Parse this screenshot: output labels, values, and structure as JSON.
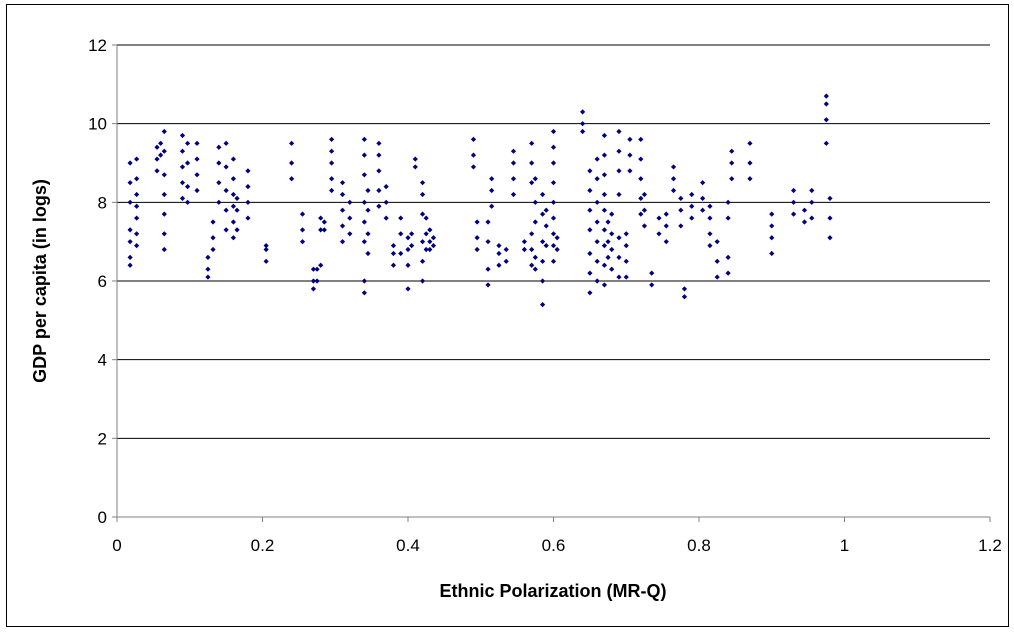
{
  "chart_data": {
    "type": "scatter",
    "title": "",
    "xlabel": "Ethnic Polarization (MR-Q)",
    "ylabel": "GDP per capita (in logs)",
    "xlim": [
      0,
      1.2
    ],
    "ylim": [
      0,
      12
    ],
    "xticks": [
      "0",
      "0.2",
      "0.4",
      "0.6",
      "0.8",
      "1",
      "1.2"
    ],
    "yticks": [
      "0",
      "2",
      "4",
      "6",
      "8",
      "10",
      "12"
    ],
    "grid": "horizontal major gridlines",
    "legend": "none",
    "marker_color": "#000080",
    "marker": "diamond",
    "series": [
      {
        "values_note": "",
        "points": [
          [
            0.018,
            6.4
          ],
          [
            0.018,
            6.6
          ],
          [
            0.018,
            7.0
          ],
          [
            0.018,
            7.3
          ],
          [
            0.018,
            8.0
          ],
          [
            0.018,
            8.5
          ],
          [
            0.018,
            9.0
          ],
          [
            0.027,
            6.9
          ],
          [
            0.027,
            7.2
          ],
          [
            0.027,
            7.6
          ],
          [
            0.027,
            7.9
          ],
          [
            0.027,
            8.2
          ],
          [
            0.027,
            8.6
          ],
          [
            0.027,
            9.1
          ],
          [
            0.055,
            8.8
          ],
          [
            0.055,
            9.1
          ],
          [
            0.055,
            9.4
          ],
          [
            0.06,
            9.5
          ],
          [
            0.06,
            9.2
          ],
          [
            0.065,
            6.8
          ],
          [
            0.065,
            7.2
          ],
          [
            0.065,
            7.7
          ],
          [
            0.065,
            8.2
          ],
          [
            0.065,
            8.7
          ],
          [
            0.065,
            9.3
          ],
          [
            0.065,
            9.8
          ],
          [
            0.09,
            8.1
          ],
          [
            0.09,
            8.5
          ],
          [
            0.09,
            8.9
          ],
          [
            0.09,
            9.3
          ],
          [
            0.09,
            9.7
          ],
          [
            0.097,
            8.0
          ],
          [
            0.097,
            8.4
          ],
          [
            0.097,
            9.0
          ],
          [
            0.097,
            9.5
          ],
          [
            0.11,
            8.3
          ],
          [
            0.11,
            8.7
          ],
          [
            0.11,
            9.1
          ],
          [
            0.11,
            9.5
          ],
          [
            0.125,
            6.1
          ],
          [
            0.125,
            6.3
          ],
          [
            0.125,
            6.6
          ],
          [
            0.132,
            6.8
          ],
          [
            0.132,
            7.1
          ],
          [
            0.132,
            7.5
          ],
          [
            0.14,
            8.0
          ],
          [
            0.14,
            8.5
          ],
          [
            0.14,
            9.0
          ],
          [
            0.14,
            9.4
          ],
          [
            0.15,
            7.3
          ],
          [
            0.15,
            7.8
          ],
          [
            0.15,
            8.3
          ],
          [
            0.15,
            8.9
          ],
          [
            0.15,
            9.5
          ],
          [
            0.16,
            7.1
          ],
          [
            0.16,
            7.5
          ],
          [
            0.16,
            7.9
          ],
          [
            0.16,
            8.2
          ],
          [
            0.16,
            8.6
          ],
          [
            0.16,
            9.1
          ],
          [
            0.165,
            7.3
          ],
          [
            0.165,
            7.8
          ],
          [
            0.165,
            8.1
          ],
          [
            0.18,
            7.6
          ],
          [
            0.18,
            8.0
          ],
          [
            0.18,
            8.4
          ],
          [
            0.18,
            8.8
          ],
          [
            0.205,
            6.5
          ],
          [
            0.205,
            6.8
          ],
          [
            0.205,
            6.9
          ],
          [
            0.24,
            8.6
          ],
          [
            0.24,
            9.0
          ],
          [
            0.24,
            9.5
          ],
          [
            0.255,
            7.0
          ],
          [
            0.255,
            7.3
          ],
          [
            0.255,
            7.7
          ],
          [
            0.27,
            5.8
          ],
          [
            0.27,
            6.0
          ],
          [
            0.27,
            6.3
          ],
          [
            0.275,
            6.0
          ],
          [
            0.275,
            6.3
          ],
          [
            0.28,
            6.4
          ],
          [
            0.28,
            7.3
          ],
          [
            0.28,
            7.6
          ],
          [
            0.285,
            7.3
          ],
          [
            0.285,
            7.5
          ],
          [
            0.295,
            8.3
          ],
          [
            0.295,
            8.6
          ],
          [
            0.295,
            9.0
          ],
          [
            0.295,
            9.3
          ],
          [
            0.295,
            9.6
          ],
          [
            0.31,
            7.0
          ],
          [
            0.31,
            7.4
          ],
          [
            0.31,
            7.8
          ],
          [
            0.31,
            8.2
          ],
          [
            0.31,
            8.5
          ],
          [
            0.32,
            7.2
          ],
          [
            0.32,
            7.6
          ],
          [
            0.32,
            8.0
          ],
          [
            0.34,
            5.7
          ],
          [
            0.34,
            6.0
          ],
          [
            0.34,
            7.0
          ],
          [
            0.34,
            7.5
          ],
          [
            0.34,
            8.0
          ],
          [
            0.34,
            8.7
          ],
          [
            0.34,
            9.2
          ],
          [
            0.34,
            9.6
          ],
          [
            0.345,
            6.7
          ],
          [
            0.345,
            7.2
          ],
          [
            0.345,
            7.8
          ],
          [
            0.345,
            8.3
          ],
          [
            0.36,
            7.9
          ],
          [
            0.36,
            8.3
          ],
          [
            0.36,
            8.8
          ],
          [
            0.36,
            9.2
          ],
          [
            0.36,
            9.5
          ],
          [
            0.37,
            7.6
          ],
          [
            0.37,
            8.0
          ],
          [
            0.37,
            8.4
          ],
          [
            0.38,
            6.4
          ],
          [
            0.38,
            6.7
          ],
          [
            0.38,
            6.9
          ],
          [
            0.39,
            6.7
          ],
          [
            0.39,
            7.2
          ],
          [
            0.39,
            7.6
          ],
          [
            0.4,
            5.8
          ],
          [
            0.4,
            6.4
          ],
          [
            0.4,
            6.8
          ],
          [
            0.4,
            7.1
          ],
          [
            0.405,
            6.9
          ],
          [
            0.405,
            7.2
          ],
          [
            0.41,
            8.9
          ],
          [
            0.41,
            9.1
          ],
          [
            0.42,
            6.0
          ],
          [
            0.42,
            6.5
          ],
          [
            0.42,
            7.0
          ],
          [
            0.42,
            7.7
          ],
          [
            0.42,
            8.2
          ],
          [
            0.42,
            8.5
          ],
          [
            0.425,
            6.8
          ],
          [
            0.425,
            7.2
          ],
          [
            0.425,
            7.6
          ],
          [
            0.43,
            6.8
          ],
          [
            0.43,
            7.0
          ],
          [
            0.43,
            7.3
          ],
          [
            0.435,
            6.9
          ],
          [
            0.435,
            7.1
          ],
          [
            0.49,
            8.9
          ],
          [
            0.49,
            9.2
          ],
          [
            0.49,
            9.6
          ],
          [
            0.495,
            6.8
          ],
          [
            0.495,
            7.1
          ],
          [
            0.495,
            7.5
          ],
          [
            0.51,
            5.9
          ],
          [
            0.51,
            6.3
          ],
          [
            0.51,
            7.0
          ],
          [
            0.51,
            7.5
          ],
          [
            0.515,
            7.9
          ],
          [
            0.515,
            8.3
          ],
          [
            0.515,
            8.6
          ],
          [
            0.525,
            6.4
          ],
          [
            0.525,
            6.7
          ],
          [
            0.525,
            6.9
          ],
          [
            0.535,
            6.5
          ],
          [
            0.535,
            6.8
          ],
          [
            0.545,
            8.2
          ],
          [
            0.545,
            8.6
          ],
          [
            0.545,
            9.0
          ],
          [
            0.545,
            9.3
          ],
          [
            0.56,
            6.8
          ],
          [
            0.56,
            7.0
          ],
          [
            0.57,
            6.4
          ],
          [
            0.57,
            6.8
          ],
          [
            0.57,
            7.2
          ],
          [
            0.57,
            8.5
          ],
          [
            0.57,
            9.0
          ],
          [
            0.57,
            9.5
          ],
          [
            0.575,
            6.3
          ],
          [
            0.575,
            6.6
          ],
          [
            0.575,
            7.5
          ],
          [
            0.575,
            8.0
          ],
          [
            0.575,
            8.6
          ],
          [
            0.585,
            5.4
          ],
          [
            0.585,
            6.0
          ],
          [
            0.585,
            6.5
          ],
          [
            0.585,
            7.0
          ],
          [
            0.585,
            7.7
          ],
          [
            0.585,
            8.2
          ],
          [
            0.59,
            6.9
          ],
          [
            0.59,
            7.4
          ],
          [
            0.59,
            7.8
          ],
          [
            0.6,
            6.5
          ],
          [
            0.6,
            6.9
          ],
          [
            0.6,
            7.2
          ],
          [
            0.6,
            7.6
          ],
          [
            0.6,
            8.0
          ],
          [
            0.6,
            8.5
          ],
          [
            0.6,
            9.0
          ],
          [
            0.6,
            9.4
          ],
          [
            0.6,
            9.8
          ],
          [
            0.605,
            6.8
          ],
          [
            0.605,
            7.1
          ],
          [
            0.64,
            9.8
          ],
          [
            0.64,
            10.0
          ],
          [
            0.64,
            10.3
          ],
          [
            0.65,
            5.7
          ],
          [
            0.65,
            6.2
          ],
          [
            0.65,
            6.7
          ],
          [
            0.65,
            7.3
          ],
          [
            0.65,
            7.8
          ],
          [
            0.65,
            8.3
          ],
          [
            0.65,
            8.8
          ],
          [
            0.66,
            6.0
          ],
          [
            0.66,
            6.5
          ],
          [
            0.66,
            7.0
          ],
          [
            0.66,
            7.5
          ],
          [
            0.66,
            8.0
          ],
          [
            0.66,
            8.6
          ],
          [
            0.66,
            9.1
          ],
          [
            0.67,
            5.9
          ],
          [
            0.67,
            6.4
          ],
          [
            0.67,
            6.9
          ],
          [
            0.67,
            7.3
          ],
          [
            0.67,
            7.8
          ],
          [
            0.67,
            8.2
          ],
          [
            0.67,
            8.7
          ],
          [
            0.67,
            9.2
          ],
          [
            0.67,
            9.7
          ],
          [
            0.675,
            6.6
          ],
          [
            0.675,
            7.0
          ],
          [
            0.675,
            7.5
          ],
          [
            0.68,
            6.3
          ],
          [
            0.68,
            6.8
          ],
          [
            0.68,
            7.2
          ],
          [
            0.68,
            7.7
          ],
          [
            0.69,
            6.1
          ],
          [
            0.69,
            6.6
          ],
          [
            0.69,
            7.1
          ],
          [
            0.69,
            8.2
          ],
          [
            0.69,
            8.8
          ],
          [
            0.69,
            9.3
          ],
          [
            0.69,
            9.8
          ],
          [
            0.7,
            6.1
          ],
          [
            0.7,
            6.5
          ],
          [
            0.7,
            6.9
          ],
          [
            0.7,
            7.2
          ],
          [
            0.705,
            8.8
          ],
          [
            0.705,
            9.2
          ],
          [
            0.705,
            9.6
          ],
          [
            0.72,
            7.7
          ],
          [
            0.72,
            8.1
          ],
          [
            0.72,
            8.6
          ],
          [
            0.72,
            9.1
          ],
          [
            0.72,
            9.6
          ],
          [
            0.725,
            7.4
          ],
          [
            0.725,
            7.8
          ],
          [
            0.725,
            8.2
          ],
          [
            0.735,
            5.9
          ],
          [
            0.735,
            6.2
          ],
          [
            0.745,
            7.2
          ],
          [
            0.745,
            7.6
          ],
          [
            0.755,
            7.0
          ],
          [
            0.755,
            7.4
          ],
          [
            0.755,
            7.7
          ],
          [
            0.765,
            8.3
          ],
          [
            0.765,
            8.6
          ],
          [
            0.765,
            8.9
          ],
          [
            0.775,
            7.4
          ],
          [
            0.775,
            7.8
          ],
          [
            0.775,
            8.1
          ],
          [
            0.78,
            5.6
          ],
          [
            0.78,
            5.8
          ],
          [
            0.79,
            7.6
          ],
          [
            0.79,
            7.9
          ],
          [
            0.79,
            8.2
          ],
          [
            0.805,
            7.8
          ],
          [
            0.805,
            8.1
          ],
          [
            0.805,
            8.5
          ],
          [
            0.815,
            6.9
          ],
          [
            0.815,
            7.2
          ],
          [
            0.815,
            7.6
          ],
          [
            0.815,
            7.9
          ],
          [
            0.825,
            6.1
          ],
          [
            0.825,
            6.5
          ],
          [
            0.825,
            7.0
          ],
          [
            0.84,
            6.2
          ],
          [
            0.84,
            6.6
          ],
          [
            0.84,
            7.6
          ],
          [
            0.84,
            8.0
          ],
          [
            0.845,
            8.6
          ],
          [
            0.845,
            9.0
          ],
          [
            0.845,
            9.3
          ],
          [
            0.87,
            8.6
          ],
          [
            0.87,
            9.0
          ],
          [
            0.87,
            9.5
          ],
          [
            0.9,
            6.7
          ],
          [
            0.9,
            7.1
          ],
          [
            0.9,
            7.4
          ],
          [
            0.9,
            7.7
          ],
          [
            0.93,
            7.7
          ],
          [
            0.93,
            8.0
          ],
          [
            0.93,
            8.3
          ],
          [
            0.945,
            7.5
          ],
          [
            0.945,
            7.8
          ],
          [
            0.955,
            7.6
          ],
          [
            0.955,
            8.0
          ],
          [
            0.955,
            8.3
          ],
          [
            0.975,
            9.5
          ],
          [
            0.975,
            10.1
          ],
          [
            0.975,
            10.5
          ],
          [
            0.975,
            10.7
          ],
          [
            0.98,
            7.1
          ],
          [
            0.98,
            7.6
          ],
          [
            0.98,
            8.1
          ]
        ]
      }
    ]
  }
}
